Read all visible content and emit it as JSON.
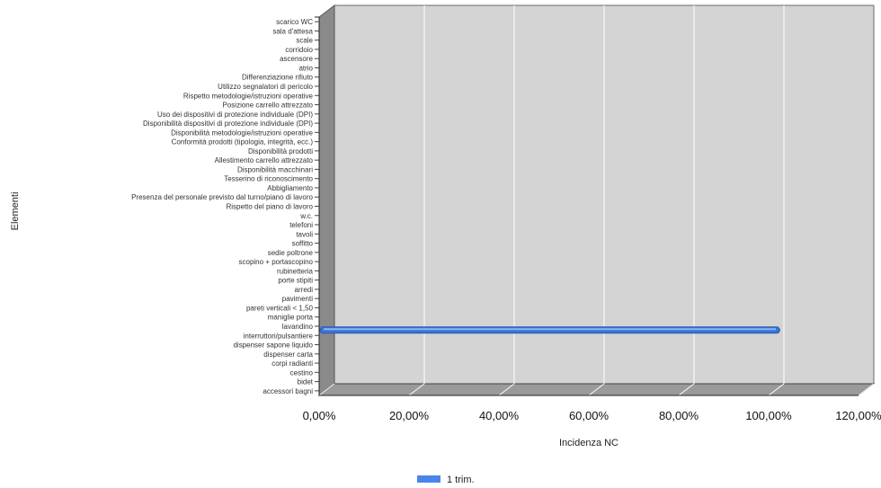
{
  "chart_data": {
    "type": "bar",
    "orientation": "horizontal",
    "three_d": true,
    "title": "",
    "xlabel": "Incidenza NC",
    "ylabel": "Elementi",
    "xlim": [
      0,
      120
    ],
    "x_ticks": [
      "0,00%",
      "20,00%",
      "40,00%",
      "60,00%",
      "80,00%",
      "100,00%",
      "120,00%"
    ],
    "x_tick_values": [
      0,
      20,
      40,
      60,
      80,
      100,
      120
    ],
    "grid": true,
    "legend_position": "bottom",
    "categories": [
      "scarico WC",
      "sala d'attesa",
      "scale",
      "corridoio",
      "ascensore",
      "atrio",
      "Differenziazione rifiuto",
      "Utilizzo segnalatori di pericolo",
      "Rispetto metodologie/istruzioni operative",
      "Posizione carrello attrezzato",
      "Uso dei dispositivi di protezione individuale (DPI)",
      "Disponibilità dispositivi di protezione individuale (DPI)",
      "Disponibilità metodologie/istruzioni operative",
      "Conformità prodotti (tipologia, integrità, ecc.)",
      "Disponibilità prodotti",
      "Allestimento carrello attrezzato",
      "Disponibilità macchinari",
      "Tesserino di riconoscimento",
      "Abbigliamento",
      "Presenza del personale previsto dal turno/piano di lavoro",
      "Rispetto del piano di lavoro",
      "w.c.",
      "telefoni",
      "tavoli",
      "soffitto",
      "sedie poltrone",
      "scopino + portascopino",
      "rubinetteria",
      "porte stipiti",
      "arredi",
      "pavimenti",
      "pareti verticali < 1,50",
      "maniglie porta",
      "lavandino",
      "interruttori/pulsantiere",
      "dispenser sapone liquido",
      "dispenser carta",
      "corpi radianti",
      "cestino",
      "bidet",
      "accessori bagni"
    ],
    "series": [
      {
        "name": "1 trim.",
        "color": "#4a86e8",
        "values": [
          0,
          0,
          0,
          0,
          0,
          0,
          0,
          0,
          0,
          0,
          0,
          0,
          0,
          0,
          0,
          0,
          0,
          0,
          0,
          0,
          0,
          0,
          0,
          0,
          0,
          0,
          0,
          0,
          0,
          0,
          0,
          0,
          0,
          0,
          100,
          0,
          0,
          0,
          0,
          0,
          0
        ]
      }
    ]
  }
}
